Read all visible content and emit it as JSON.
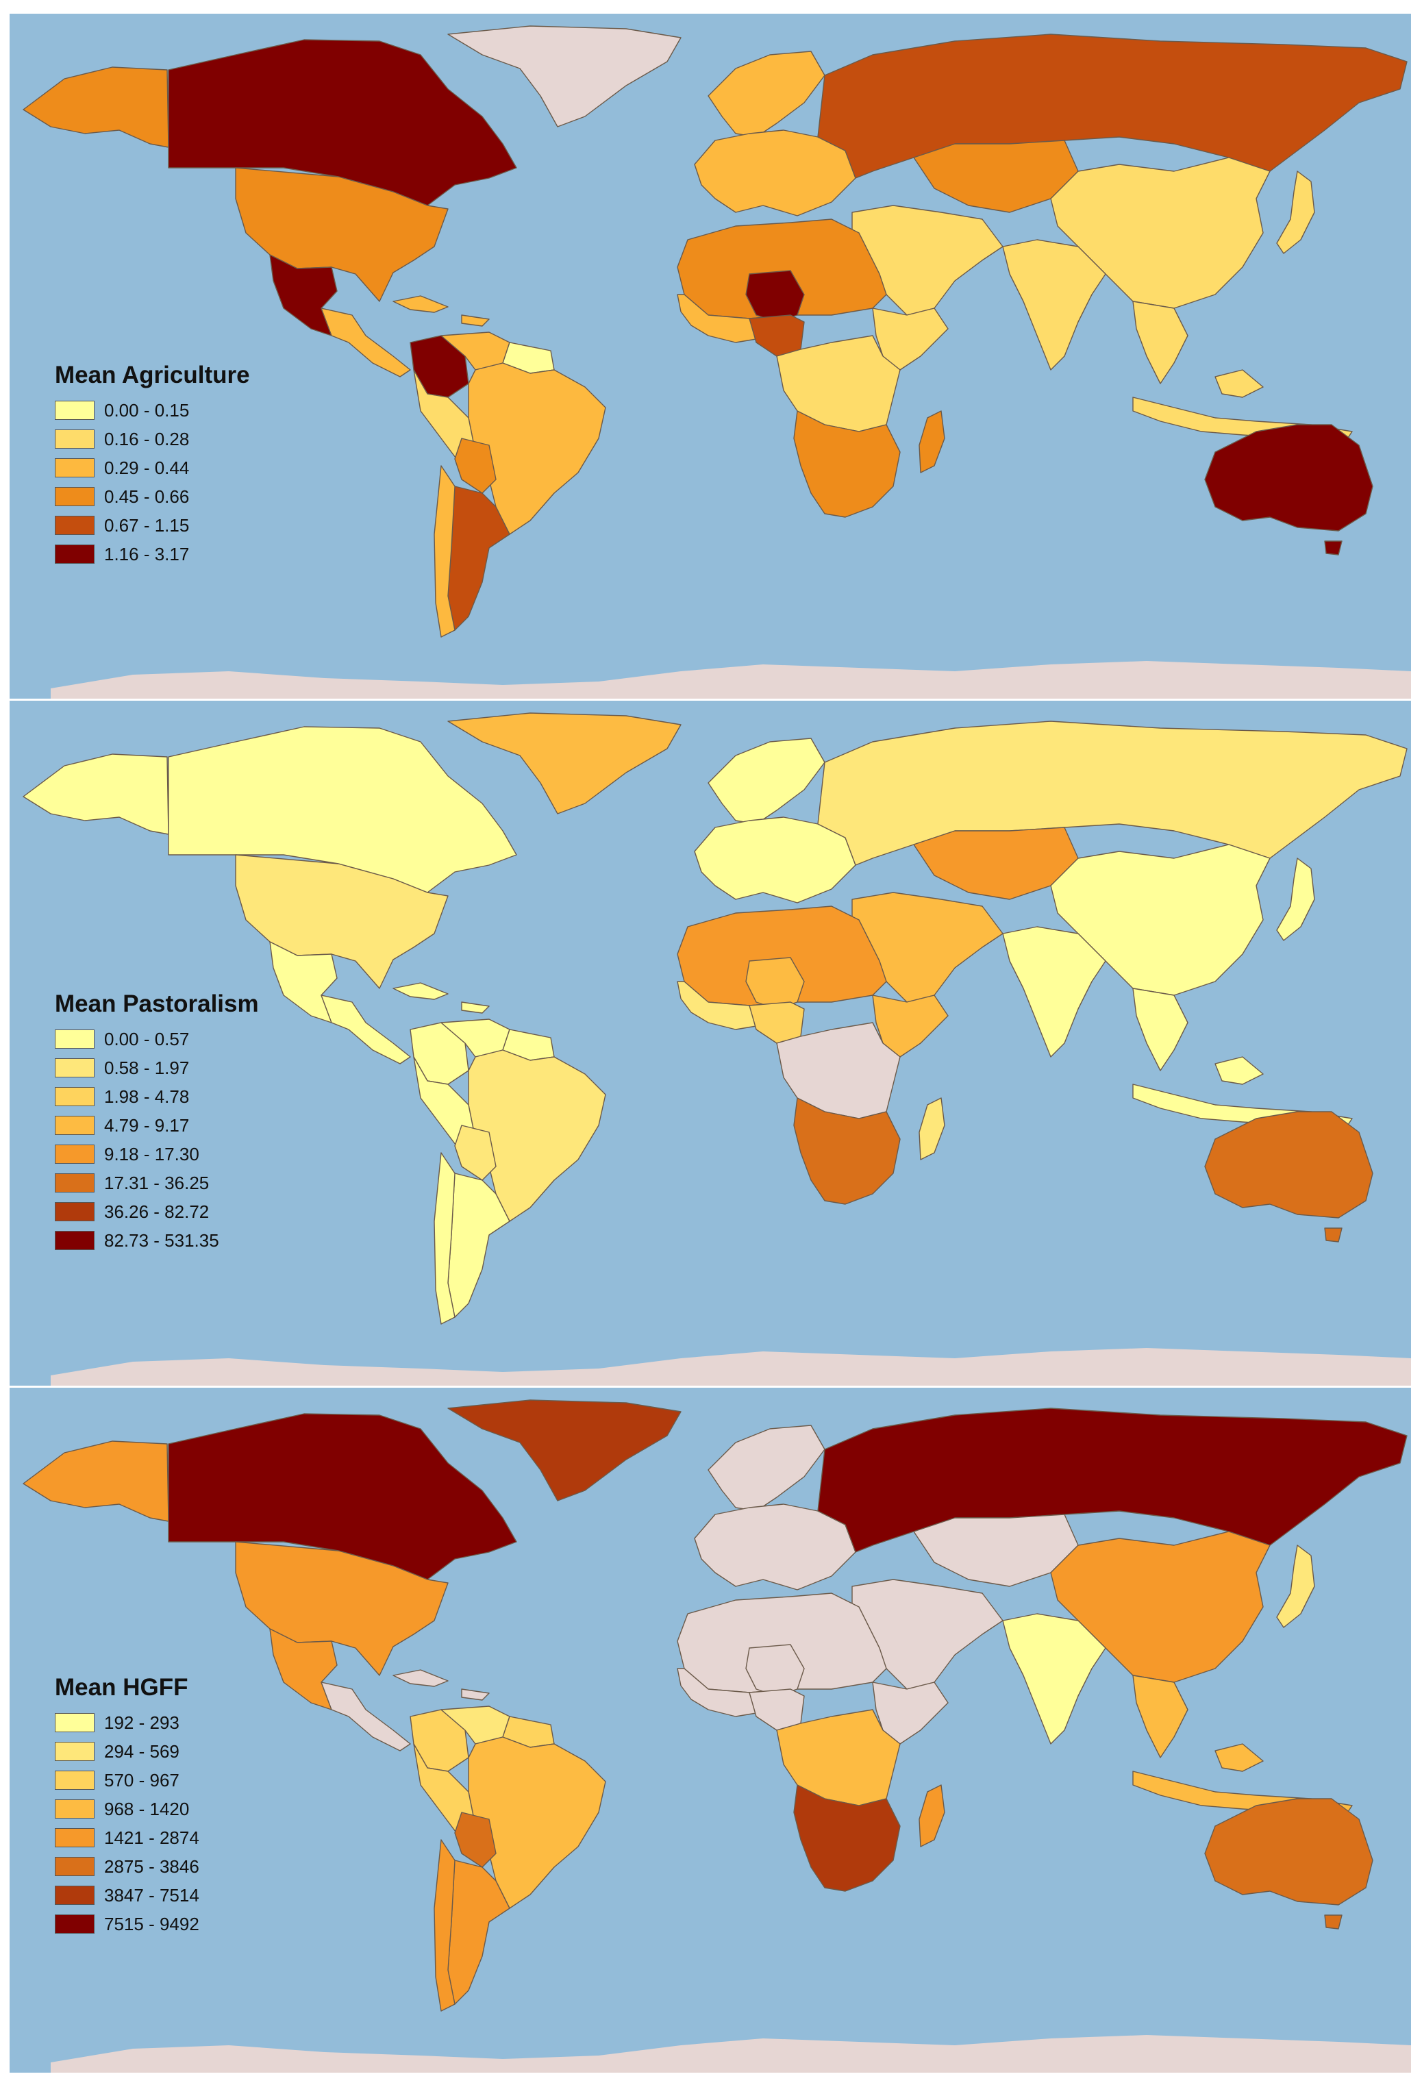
{
  "colors": {
    "ocean": "#93bcd9",
    "land_nodata": "#e6d6d3",
    "border": "#6b5a4a"
  },
  "panels": [
    {
      "title": "Mean Agriculture",
      "classes": [
        {
          "label": "0.00 - 0.15",
          "color": "#ffff99"
        },
        {
          "label": "0.16 - 0.28",
          "color": "#fedc6a"
        },
        {
          "label": "0.29 - 0.44",
          "color": "#fdb93f"
        },
        {
          "label": "0.45 - 0.66",
          "color": "#ee8c1b"
        },
        {
          "label": "0.67 - 1.15",
          "color": "#c44e0e"
        },
        {
          "label": "1.16 - 3.17",
          "color": "#800000"
        }
      ]
    },
    {
      "title": "Mean Pastoralism",
      "classes": [
        {
          "label": "0.00 - 0.57",
          "color": "#ffff99"
        },
        {
          "label": "0.58 - 1.97",
          "color": "#fee77a"
        },
        {
          "label": "1.98 - 4.78",
          "color": "#fed35d"
        },
        {
          "label": "4.79 - 9.17",
          "color": "#fdbb42"
        },
        {
          "label": "9.18 - 17.30",
          "color": "#f6992a"
        },
        {
          "label": "17.31 - 36.25",
          "color": "#d9701a"
        },
        {
          "label": "36.26 - 82.72",
          "color": "#b03a0c"
        },
        {
          "label": "82.73 - 531.35",
          "color": "#800000"
        }
      ]
    },
    {
      "title": "Mean HGFF",
      "classes": [
        {
          "label": "192 - 293",
          "color": "#ffff99"
        },
        {
          "label": "294 - 569",
          "color": "#fee77a"
        },
        {
          "label": "570 - 967",
          "color": "#fed35d"
        },
        {
          "label": "968 - 1420",
          "color": "#fdbb42"
        },
        {
          "label": "1421 - 2874",
          "color": "#f6992a"
        },
        {
          "label": "2875 - 3846",
          "color": "#d9701a"
        },
        {
          "label": "3847 - 7514",
          "color": "#b03a0c"
        },
        {
          "label": "7515 - 9492",
          "color": "#800000"
        }
      ]
    }
  ],
  "regions": {
    "agriculture": {
      "alaska": 3,
      "canada": 5,
      "usa": 3,
      "mexico": 5,
      "central_america": 2,
      "caribbean": 2,
      "colombia": 5,
      "venezuela": 2,
      "guianas": 0,
      "brazil": 2,
      "andes": 1,
      "bolivia": 3,
      "argentina": 4,
      "chile": 2,
      "greenland": -1,
      "europe": 2,
      "scandinavia": 2,
      "russia": 4,
      "kazakhstan": 3,
      "middle_east": 1,
      "north_africa": 3,
      "niger": 5,
      "nigeria": 4,
      "west_africa": 2,
      "horn_africa": 1,
      "central_africa": 1,
      "southern_africa": 3,
      "madagascar": 3,
      "south_asia": 1,
      "china": 1,
      "southeast_asia": 1,
      "japan": 1,
      "indonesia": 1,
      "australia": 5
    },
    "pastoralism": {
      "alaska": 0,
      "canada": 0,
      "usa": 1,
      "mexico": 0,
      "central_america": 0,
      "caribbean": 0,
      "colombia": 0,
      "venezuela": 0,
      "guianas": 0,
      "brazil": 1,
      "andes": 0,
      "bolivia": 1,
      "argentina": 0,
      "chile": 0,
      "greenland": 3,
      "europe": 0,
      "scandinavia": 0,
      "russia": 1,
      "kazakhstan": 4,
      "middle_east": 3,
      "north_africa": 4,
      "niger": 3,
      "nigeria": 2,
      "west_africa": 1,
      "horn_africa": 3,
      "central_africa": -1,
      "southern_africa": 5,
      "madagascar": 1,
      "south_asia": 0,
      "china": 0,
      "southeast_asia": 0,
      "japan": 0,
      "indonesia": 0,
      "australia": 5
    },
    "hgff": {
      "alaska": 4,
      "canada": 7,
      "usa": 4,
      "mexico": 4,
      "central_america": -1,
      "caribbean": -1,
      "colombia": 2,
      "venezuela": 1,
      "guianas": 2,
      "brazil": 3,
      "andes": 2,
      "bolivia": 5,
      "argentina": 4,
      "chile": 4,
      "greenland": 6,
      "europe": -1,
      "scandinavia": -1,
      "russia": 7,
      "kazakhstan": -1,
      "middle_east": -1,
      "north_africa": -1,
      "niger": -1,
      "nigeria": -1,
      "west_africa": -1,
      "horn_africa": -1,
      "central_africa": 3,
      "southern_africa": 6,
      "madagascar": 4,
      "south_asia": 0,
      "china": 4,
      "southeast_asia": 3,
      "japan": 1,
      "indonesia": 3,
      "australia": 5
    }
  }
}
